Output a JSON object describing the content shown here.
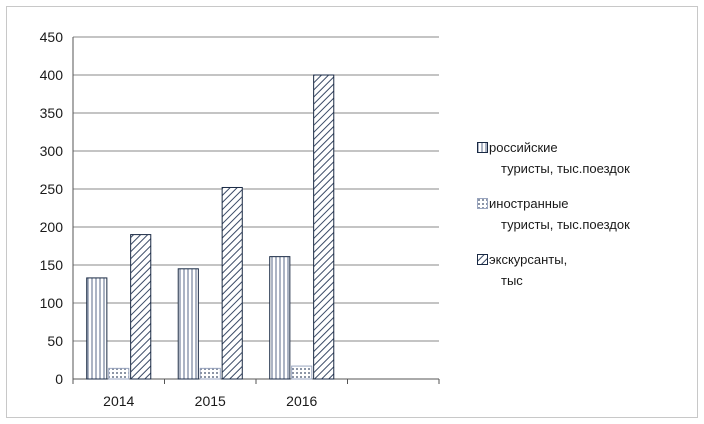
{
  "chart_data": {
    "type": "bar",
    "categories": [
      "2014",
      "2015",
      "2016"
    ],
    "series": [
      {
        "name": "российские туристы, тыс.поездок",
        "values": [
          133,
          145,
          161
        ],
        "pattern": "vertical"
      },
      {
        "name": "иностранные туристы, тыс.поездок",
        "values": [
          14,
          14,
          17
        ],
        "pattern": "dots"
      },
      {
        "name": "экскурсанты, тыс",
        "values": [
          190,
          252,
          400
        ],
        "pattern": "diagonal"
      }
    ],
    "yticks": [
      "0",
      "50",
      "100",
      "150",
      "200",
      "250",
      "300",
      "350",
      "400",
      "450"
    ],
    "ylim": [
      0,
      450
    ],
    "grid": true,
    "legend_position": "right",
    "colors": {
      "bar_stroke": "#1a2a44",
      "hatch": "#3a4a66",
      "grid": "#8a8a8a",
      "axis": "#555555"
    }
  },
  "legend": [
    {
      "first": "российские",
      "rest": "туристы, тыс.поездок"
    },
    {
      "first": "иностранные",
      "rest": "туристы, тыс.поездок"
    },
    {
      "first": "экскурсанты,",
      "rest": "тыс"
    }
  ]
}
